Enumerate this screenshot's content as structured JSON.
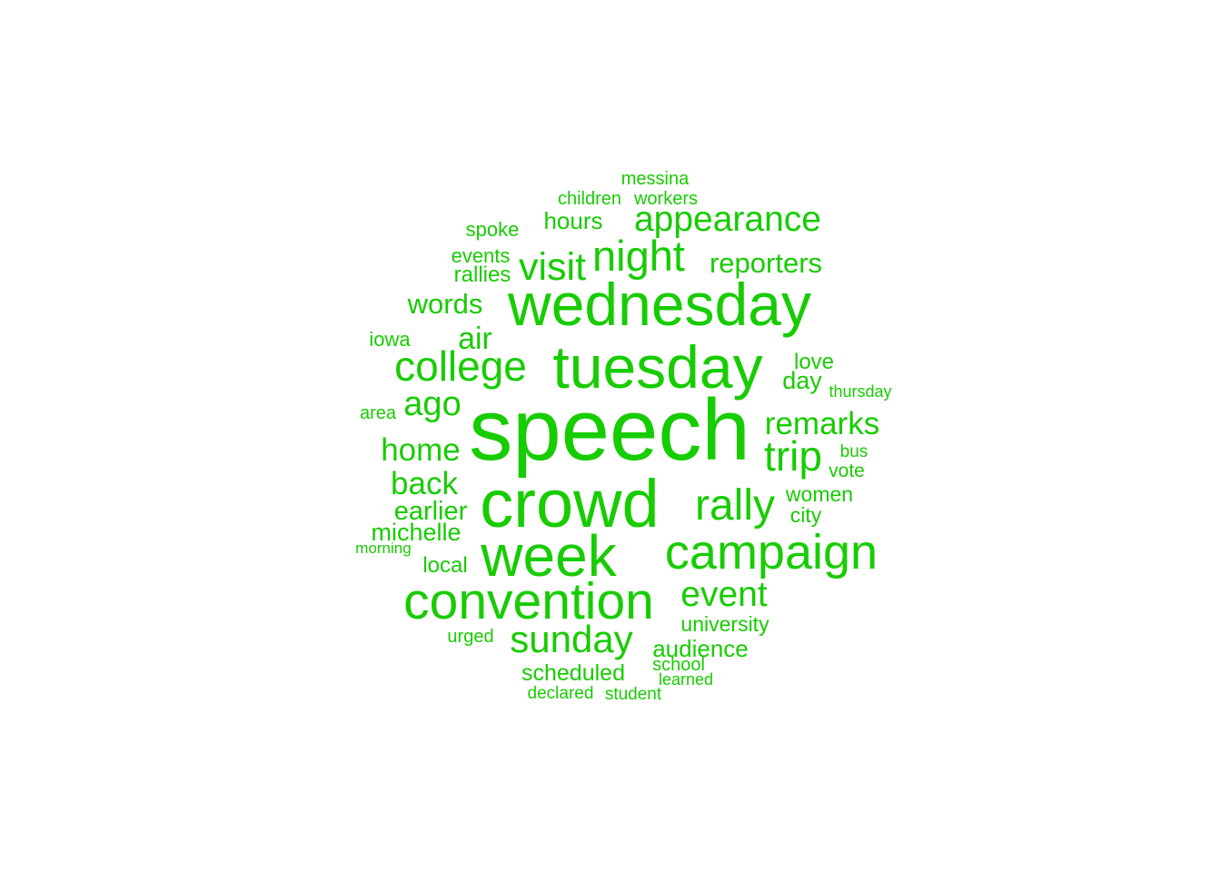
{
  "color": "#17cc00",
  "words": [
    {
      "text": "speech",
      "weight": 100
    },
    {
      "text": "crowd",
      "weight": 86
    },
    {
      "text": "wednesday",
      "weight": 80
    },
    {
      "text": "tuesday",
      "weight": 80
    },
    {
      "text": "week",
      "weight": 76
    },
    {
      "text": "convention",
      "weight": 70
    },
    {
      "text": "campaign",
      "weight": 68
    },
    {
      "text": "rally",
      "weight": 60
    },
    {
      "text": "night",
      "weight": 56
    },
    {
      "text": "college",
      "weight": 54
    },
    {
      "text": "trip",
      "weight": 52
    },
    {
      "text": "visit",
      "weight": 50
    },
    {
      "text": "ago",
      "weight": 48
    },
    {
      "text": "sunday",
      "weight": 48
    },
    {
      "text": "event",
      "weight": 46
    },
    {
      "text": "appearance",
      "weight": 46
    },
    {
      "text": "remarks",
      "weight": 42
    },
    {
      "text": "home",
      "weight": 42
    },
    {
      "text": "back",
      "weight": 42
    },
    {
      "text": "reporters",
      "weight": 38
    },
    {
      "text": "words",
      "weight": 38
    },
    {
      "text": "air",
      "weight": 38
    },
    {
      "text": "earlier",
      "weight": 36
    },
    {
      "text": "michelle",
      "weight": 34
    },
    {
      "text": "audience",
      "weight": 34
    },
    {
      "text": "scheduled",
      "weight": 32
    },
    {
      "text": "hours",
      "weight": 32
    },
    {
      "text": "day",
      "weight": 32
    },
    {
      "text": "love",
      "weight": 30
    },
    {
      "text": "local",
      "weight": 30
    },
    {
      "text": "university",
      "weight": 28
    },
    {
      "text": "women",
      "weight": 28
    },
    {
      "text": "rallies",
      "weight": 28
    },
    {
      "text": "spoke",
      "weight": 26
    },
    {
      "text": "city",
      "weight": 26
    },
    {
      "text": "events",
      "weight": 26
    },
    {
      "text": "vote",
      "weight": 26
    },
    {
      "text": "iowa",
      "weight": 26
    },
    {
      "text": "children",
      "weight": 24
    },
    {
      "text": "workers",
      "weight": 24
    },
    {
      "text": "messina",
      "weight": 24
    },
    {
      "text": "urged",
      "weight": 24
    },
    {
      "text": "school",
      "weight": 24
    },
    {
      "text": "area",
      "weight": 24
    },
    {
      "text": "bus",
      "weight": 24
    },
    {
      "text": "declared",
      "weight": 24
    },
    {
      "text": "student",
      "weight": 22
    },
    {
      "text": "learned",
      "weight": 22
    },
    {
      "text": "morning",
      "weight": 22
    },
    {
      "text": "thursday",
      "weight": 22
    }
  ]
}
